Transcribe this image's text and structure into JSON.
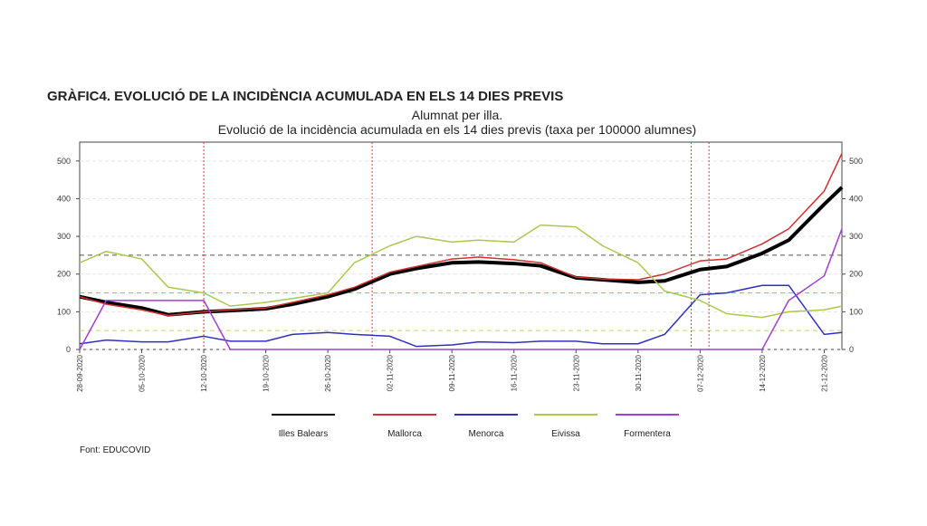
{
  "header": "GRÀFIC4. EVOLUCIÓ DE LA INCIDÈNCIA ACUMULADA EN ELS 14 DIES PREVIS",
  "source": "Font: EDUCOVID",
  "chart_data": {
    "type": "line",
    "title": "Alumnat per illa.",
    "subtitle": "Evolució de la incidència acumulada en els 14 dies previs (taxa per 100000 alumnes)",
    "x": [
      "28-09-2020",
      "01-10-2020",
      "05-10-2020",
      "08-10-2020",
      "12-10-2020",
      "15-10-2020",
      "19-10-2020",
      "22-10-2020",
      "26-10-2020",
      "29-10-2020",
      "02-11-2020",
      "05-11-2020",
      "09-11-2020",
      "12-11-2020",
      "16-11-2020",
      "19-11-2020",
      "23-11-2020",
      "26-11-2020",
      "30-11-2020",
      "03-12-2020",
      "07-12-2020",
      "10-12-2020",
      "14-12-2020",
      "17-12-2020",
      "21-12-2020",
      "23-12-2020"
    ],
    "xlim": [
      "28-09-2020",
      "23-12-2020"
    ],
    "xticks": [
      "28-09-2020",
      "05-10-2020",
      "12-10-2020",
      "19-10-2020",
      "26-10-2020",
      "02-11-2020",
      "09-11-2020",
      "16-11-2020",
      "23-11-2020",
      "30-11-2020",
      "07-12-2020",
      "14-12-2020",
      "21-12-2020"
    ],
    "ylim": [
      0,
      550
    ],
    "yticks": [
      0,
      100,
      200,
      300,
      400,
      500
    ],
    "y2lim": [
      0,
      550
    ],
    "y2ticks": [
      0,
      100,
      200,
      300,
      400,
      500
    ],
    "grid": true,
    "vertical_lines": {
      "color": "#d04040",
      "x": [
        "12-10-2020",
        "31-10-2020",
        "06-12-2020",
        "08-12-2020"
      ]
    },
    "horizontal_lines": [
      {
        "value": 250,
        "color": "#555555"
      },
      {
        "value": 150,
        "color": "#e0a040"
      },
      {
        "value": 50,
        "color": "#c8d060"
      }
    ],
    "series": [
      {
        "name": "Illes Balears",
        "color": "#000000",
        "width": 4,
        "values": [
          140,
          125,
          110,
          92,
          100,
          103,
          108,
          120,
          140,
          160,
          200,
          215,
          230,
          232,
          228,
          222,
          190,
          185,
          178,
          182,
          212,
          220,
          255,
          290,
          385,
          430
        ]
      },
      {
        "name": "Mallorca",
        "color": "#d03030",
        "width": 1.5,
        "values": [
          140,
          120,
          105,
          90,
          100,
          105,
          110,
          125,
          145,
          165,
          205,
          220,
          240,
          245,
          238,
          230,
          192,
          187,
          185,
          200,
          235,
          240,
          280,
          320,
          420,
          520
        ]
      },
      {
        "name": "Menorca",
        "color": "#3030c0",
        "width": 1.5,
        "values": [
          15,
          25,
          20,
          20,
          35,
          22,
          22,
          40,
          45,
          40,
          35,
          8,
          12,
          20,
          18,
          22,
          22,
          15,
          15,
          40,
          145,
          150,
          170,
          170,
          40,
          45
        ]
      },
      {
        "name": "Eivissa",
        "color": "#a8c850",
        "width": 1.5,
        "values": [
          230,
          260,
          240,
          165,
          150,
          115,
          125,
          135,
          150,
          230,
          275,
          300,
          285,
          290,
          285,
          330,
          325,
          275,
          230,
          155,
          130,
          95,
          85,
          100,
          105,
          115
        ]
      },
      {
        "name": "Formentera",
        "color": "#a040d0",
        "width": 1.5,
        "values": [
          0,
          130,
          130,
          130,
          130,
          0,
          0,
          0,
          0,
          0,
          0,
          0,
          0,
          0,
          0,
          0,
          0,
          0,
          0,
          0,
          0,
          0,
          0,
          130,
          195,
          320
        ]
      }
    ]
  }
}
